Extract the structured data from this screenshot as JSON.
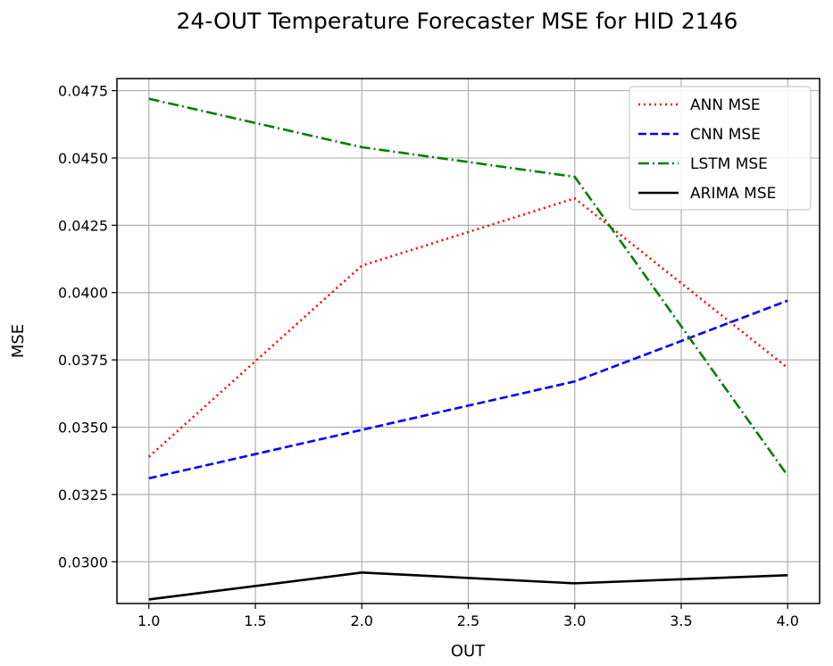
{
  "chart_data": {
    "type": "line",
    "title": "24-OUT Temperature Forecaster MSE for HID 2146",
    "xlabel": "OUT",
    "ylabel": "MSE",
    "x": [
      1.0,
      2.0,
      3.0,
      4.0
    ],
    "xlim": [
      0.85,
      4.15
    ],
    "ylim": [
      0.02845,
      0.04795
    ],
    "xticks": [
      1.0,
      1.5,
      2.0,
      2.5,
      3.0,
      3.5,
      4.0
    ],
    "xtick_labels": [
      "1.0",
      "1.5",
      "2.0",
      "2.5",
      "3.0",
      "3.5",
      "4.0"
    ],
    "yticks": [
      0.03,
      0.0325,
      0.035,
      0.0375,
      0.04,
      0.0425,
      0.045,
      0.0475
    ],
    "ytick_labels": [
      "0.0300",
      "0.0325",
      "0.0350",
      "0.0375",
      "0.0400",
      "0.0425",
      "0.0450",
      "0.0475"
    ],
    "grid": true,
    "legend_position": "top-right",
    "series": [
      {
        "name": "ANN MSE",
        "values": [
          0.0339,
          0.041,
          0.0435,
          0.0372
        ],
        "color": "#ff0000",
        "style": "dotted"
      },
      {
        "name": "CNN MSE",
        "values": [
          0.0331,
          0.0349,
          0.0367,
          0.0397
        ],
        "color": "#0000ff",
        "style": "dashed"
      },
      {
        "name": "LSTM MSE",
        "values": [
          0.0472,
          0.0454,
          0.0443,
          0.0332
        ],
        "color": "#008000",
        "style": "dashdot"
      },
      {
        "name": "ARIMA MSE",
        "values": [
          0.0286,
          0.0296,
          0.0292,
          0.0295
        ],
        "color": "#000000",
        "style": "solid"
      }
    ]
  }
}
